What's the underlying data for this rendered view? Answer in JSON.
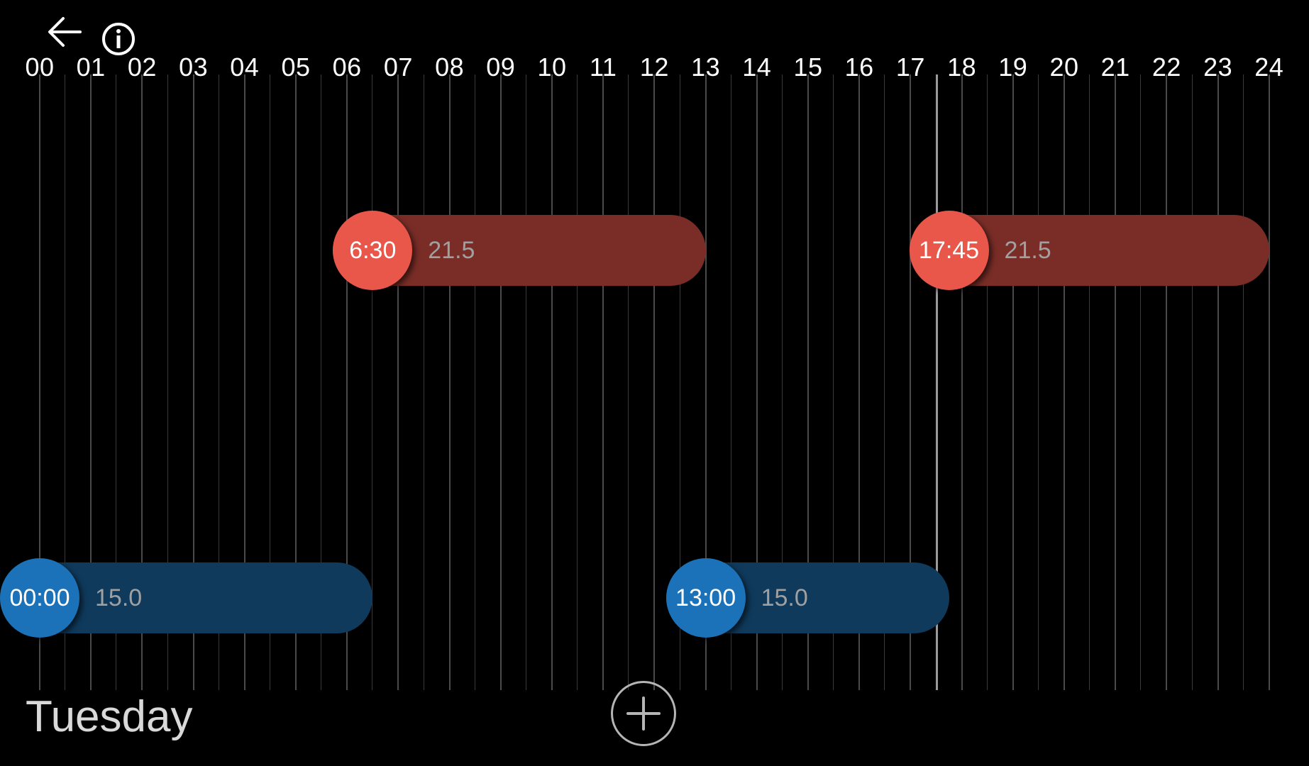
{
  "toolbar": {
    "back_icon": "arrow-left-icon",
    "info_icon": "info-icon"
  },
  "timeline": {
    "hours": [
      "00",
      "01",
      "02",
      "03",
      "04",
      "05",
      "06",
      "07",
      "08",
      "09",
      "10",
      "11",
      "12",
      "13",
      "14",
      "15",
      "16",
      "17",
      "18",
      "19",
      "20",
      "21",
      "22",
      "23",
      "24"
    ],
    "current_time_hours": 17.5
  },
  "schedule": {
    "heating": [
      {
        "time": "6:30",
        "temp": "21.5",
        "start": 6.5,
        "end": 13.0
      },
      {
        "time": "17:45",
        "temp": "21.5",
        "start": 17.75,
        "end": 24.0
      }
    ],
    "setback": [
      {
        "time": "00:00",
        "temp": "15.0",
        "start": 0.0,
        "end": 6.5
      },
      {
        "time": "13:00",
        "temp": "15.0",
        "start": 13.0,
        "end": 17.75
      }
    ]
  },
  "day": {
    "name": "Tuesday"
  },
  "add_icon": "plus-circle-icon",
  "colors": {
    "heating": "#e8574a",
    "setback": "#1b72b8"
  }
}
